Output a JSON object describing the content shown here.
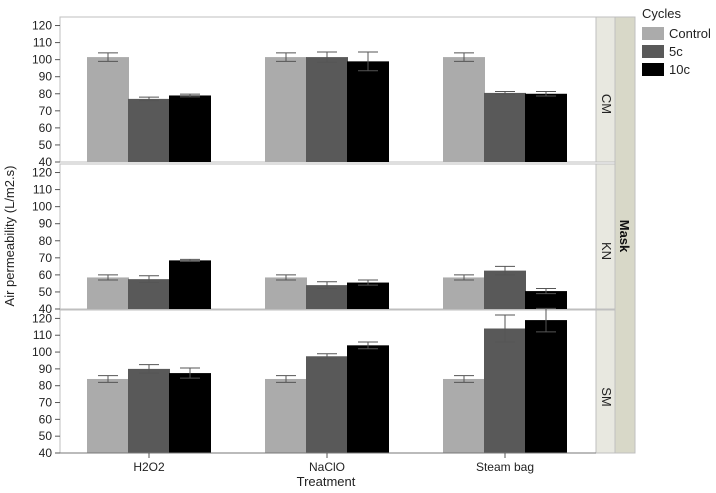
{
  "chart_data": {
    "type": "bar",
    "title": "",
    "xlabel": "Treatment",
    "ylabel": "Air permeability (L/m2.s)",
    "facet_title": "Mask",
    "legend_title": "Cycles",
    "legend_position": "top-right",
    "categories": [
      "H2O2",
      "NaClO",
      "Steam bag"
    ],
    "series_names": [
      "Control",
      "5c",
      "10c"
    ],
    "colors": [
      "#ababab",
      "#595959",
      "#000000"
    ],
    "ylim": [
      40,
      125
    ],
    "yticks": [
      "40",
      "50",
      "60",
      "70",
      "80",
      "90",
      "100",
      "110",
      "120"
    ],
    "facets": [
      {
        "label": "CM",
        "series": [
          {
            "name": "Control",
            "values": [
              101.5,
              101.5,
              101.5
            ],
            "errors": [
              2.5,
              2.5,
              2.5
            ]
          },
          {
            "name": "5c",
            "values": [
              77,
              101.5,
              80.5
            ],
            "errors": [
              1,
              3,
              0.8
            ]
          },
          {
            "name": "10c",
            "values": [
              79,
              99,
              80
            ],
            "errors": [
              0.8,
              5.5,
              1.3
            ]
          }
        ]
      },
      {
        "label": "KN",
        "series": [
          {
            "name": "Control",
            "values": [
              58.5,
              58.5,
              58.5
            ],
            "errors": [
              1.5,
              1.5,
              1.5
            ]
          },
          {
            "name": "5c",
            "values": [
              57.5,
              54,
              62.5
            ],
            "errors": [
              2,
              2,
              2.5
            ]
          },
          {
            "name": "10c",
            "values": [
              68.5,
              55.5,
              50.5
            ],
            "errors": [
              0.6,
              1.5,
              1.5
            ]
          }
        ]
      },
      {
        "label": "SM",
        "series": [
          {
            "name": "Control",
            "values": [
              84,
              84,
              84
            ],
            "errors": [
              2,
              2,
              2
            ]
          },
          {
            "name": "5c",
            "values": [
              90,
              97.5,
              114
            ],
            "errors": [
              2.5,
              1.5,
              8
            ]
          },
          {
            "name": "10c",
            "values": [
              87.5,
              104,
              119
            ],
            "errors": [
              3,
              2,
              7
            ]
          }
        ]
      }
    ]
  }
}
